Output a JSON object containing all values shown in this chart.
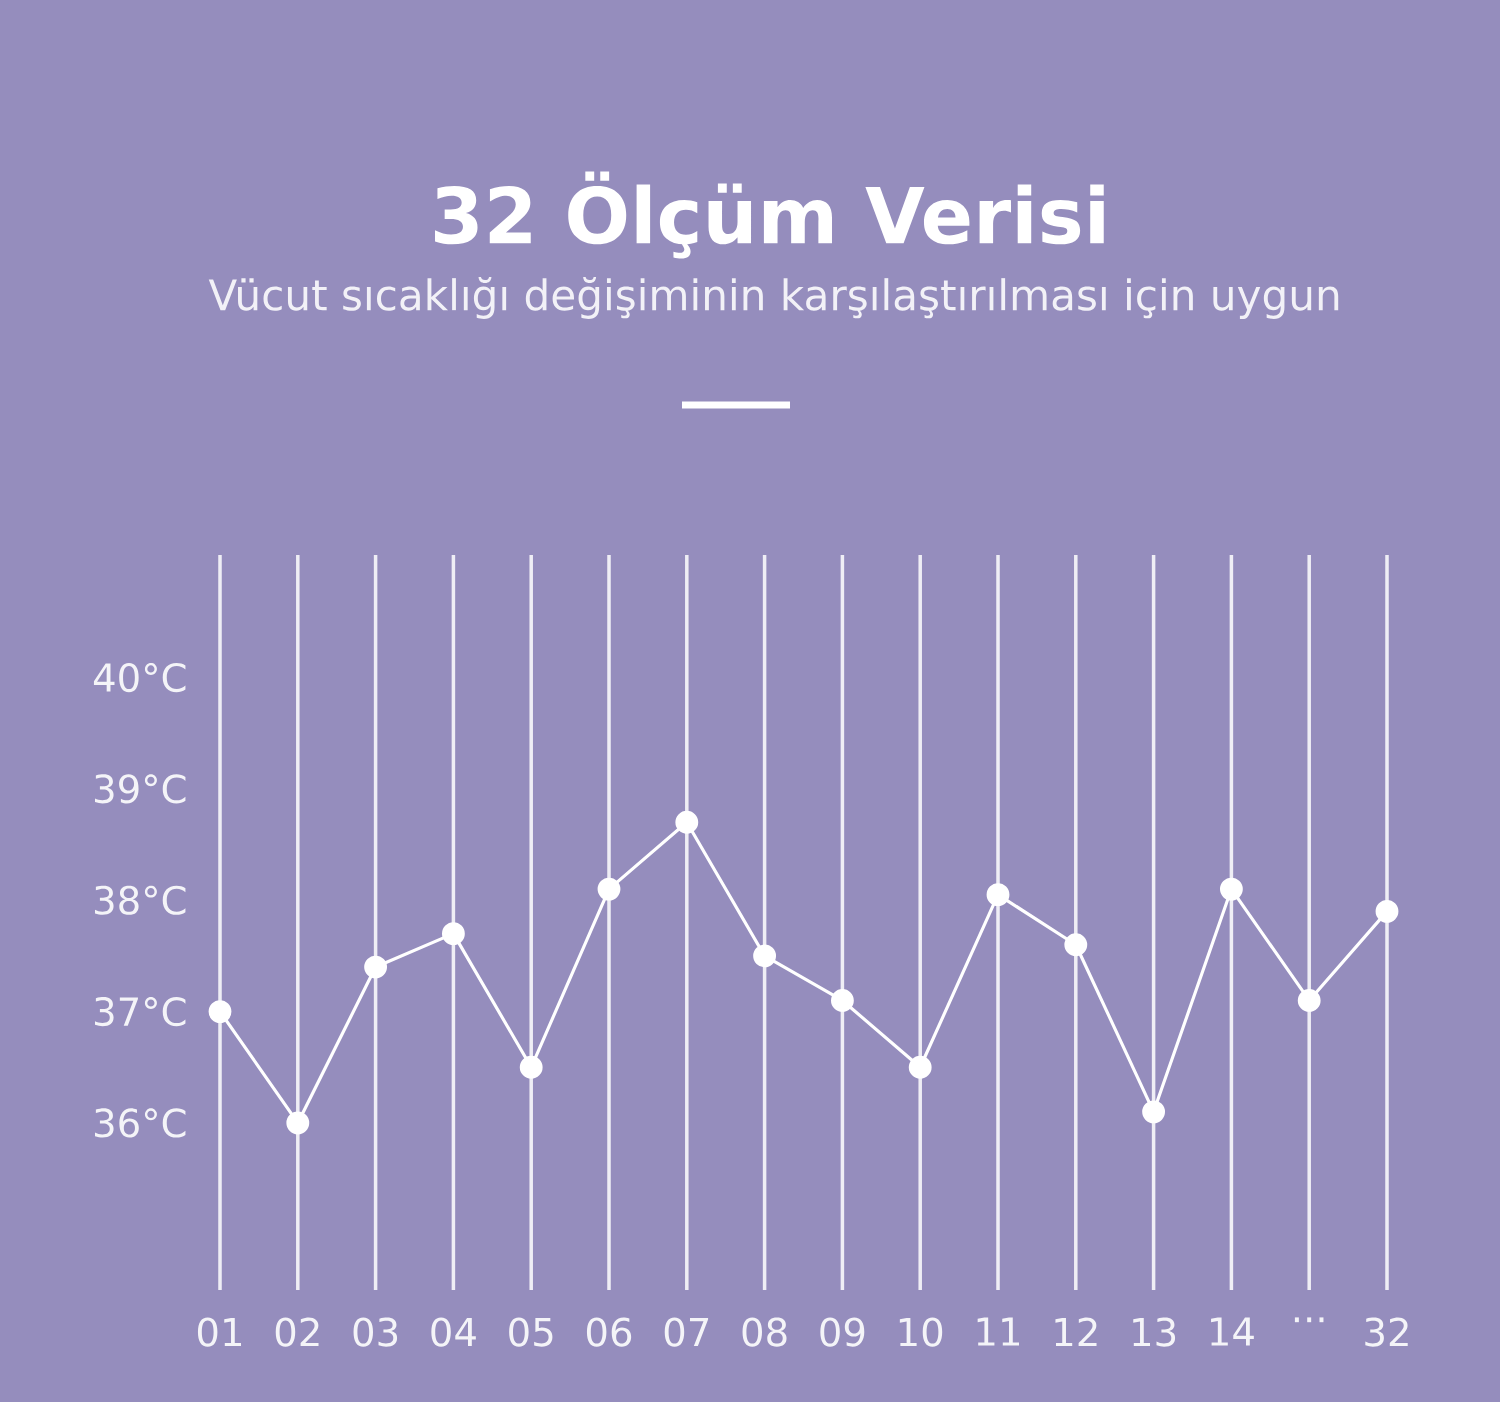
{
  "chart_data": {
    "type": "line",
    "title": "32 Ölçüm Verisi",
    "subtitle": "Vücut sıcaklığı değişiminin karşılaştırılması için uygun",
    "categories": [
      "01",
      "02",
      "03",
      "04",
      "05",
      "06",
      "07",
      "08",
      "09",
      "10",
      "11",
      "12",
      "13",
      "14",
      "···",
      "32"
    ],
    "series": [
      {
        "color": "#ffffff",
        "values": [
          37.0,
          36.0,
          37.4,
          37.7,
          36.5,
          38.1,
          38.7,
          37.5,
          37.1,
          36.5,
          38.05,
          37.6,
          36.1,
          38.1,
          37.1,
          37.9
        ]
      }
    ],
    "ylim": [
      34.5,
      41.1
    ],
    "yticks": [
      {
        "value": 36,
        "label": "36°C"
      },
      {
        "value": 37,
        "label": "37°C"
      },
      {
        "value": 38,
        "label": "38°C"
      },
      {
        "value": 39,
        "label": "39°C"
      },
      {
        "value": 40,
        "label": "40°C"
      }
    ],
    "grid": "x",
    "marker": "circle",
    "line_style": "solid"
  }
}
